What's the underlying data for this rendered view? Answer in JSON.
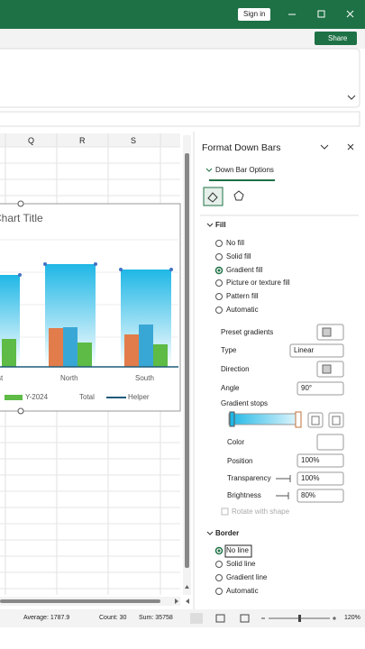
{
  "title_bar": {
    "sign_in": "Sign in"
  },
  "ribbon": {
    "share": "Share"
  },
  "sheet": {
    "columns": [
      "Q",
      "R",
      "S"
    ]
  },
  "chart": {
    "title": "Chart Title",
    "categories": [
      "st",
      "North",
      "South"
    ],
    "legend": [
      "Y-2024",
      "Total",
      "Helper"
    ]
  },
  "pane": {
    "title": "Format Down Bars",
    "tab": "Down Bar Options",
    "fill": {
      "heading": "Fill",
      "options": [
        "No fill",
        "Solid fill",
        "Gradient fill",
        "Picture or texture fill",
        "Pattern fill",
        "Automatic"
      ],
      "preset_gradients": "Preset gradients",
      "type": "Type",
      "type_value": "Linear",
      "direction": "Direction",
      "angle": "Angle",
      "angle_value": "90°",
      "gradient_stops": "Gradient stops",
      "color": "Color",
      "position": "Position",
      "position_value": "100%",
      "transparency": "Transparency",
      "transparency_value": "100%",
      "brightness": "Brightness",
      "brightness_value": "80%",
      "rotate_with_shape": "Rotate with shape"
    },
    "border": {
      "heading": "Border",
      "options": [
        "No line",
        "Solid line",
        "Gradient line",
        "Automatic"
      ]
    }
  },
  "status_bar": {
    "average": "Average: 1787.9",
    "count": "Count: 30",
    "sum": "Sum: 35758",
    "zoom": "120%"
  }
}
